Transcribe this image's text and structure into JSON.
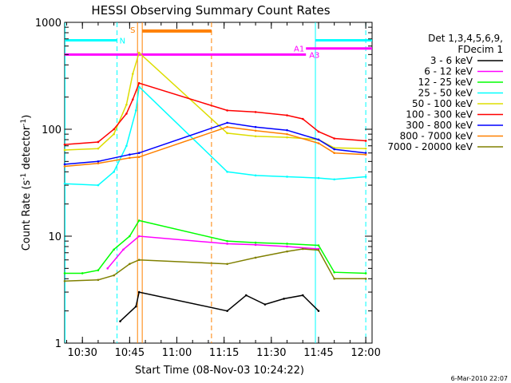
{
  "chart_data": {
    "type": "line",
    "title": "HESSI Observing Summary Count Rates",
    "xlabel": "Start Time (08-Nov-03 10:24:22)",
    "ylabel": "Count Rate (s",
    "ylabel_sup": "-1",
    "ylabel_mid": " detector",
    "ylabel_tail": ")",
    "y_scale": "log",
    "ylim": [
      1,
      1000
    ],
    "xlim": [
      "10:24:22",
      "12:02:00"
    ],
    "x_ticks": [
      "10:30",
      "10:45",
      "11:00",
      "11:15",
      "11:30",
      "11:45",
      "12:00"
    ],
    "y_ticks": [
      "1",
      "10",
      "100",
      "1000"
    ],
    "grid": false,
    "legend_position": "right",
    "legend_title": [
      "Det 1,3,4,5,6,9,",
      "FDecim 1"
    ],
    "series": [
      {
        "name": "3 - 6 keV",
        "color": "#000000",
        "x": [
          "10:42",
          "10:47",
          "10:48",
          "11:16",
          "11:22",
          "11:28",
          "11:34",
          "11:40",
          "11:45"
        ],
        "values": [
          1.6,
          2.2,
          3.0,
          2.0,
          2.8,
          2.3,
          2.6,
          2.8,
          2.0
        ]
      },
      {
        "name": "6 - 12 keV",
        "color": "#ff00ff",
        "x": [
          "10:38",
          "10:43",
          "10:48",
          "11:16",
          "11:25",
          "11:35",
          "11:45"
        ],
        "values": [
          5.0,
          7.5,
          10.0,
          8.5,
          8.3,
          8.0,
          7.6
        ]
      },
      {
        "name": "12 - 25 keV",
        "color": "#00ff00",
        "x": [
          "10:24:22",
          "10:30",
          "10:35",
          "10:40",
          "10:45",
          "10:48",
          "11:16",
          "11:25",
          "11:35",
          "11:45",
          "11:50",
          "12:00"
        ],
        "values": [
          4.5,
          4.5,
          4.8,
          7.5,
          10.0,
          14.0,
          9.0,
          8.7,
          8.5,
          8.2,
          4.6,
          4.5
        ]
      },
      {
        "name": "25 - 50 keV",
        "color": "#00ffff",
        "x": [
          "10:24:22",
          "10:35",
          "10:40",
          "10:44",
          "10:47",
          "10:48",
          "11:16",
          "11:25",
          "11:35",
          "11:45",
          "11:50",
          "12:00"
        ],
        "values": [
          31,
          30,
          40,
          70,
          150,
          250,
          40,
          37,
          36,
          35,
          34,
          36
        ]
      },
      {
        "name": "50 - 100 keV",
        "color": "#dddd00",
        "x": [
          "10:24:22",
          "10:35",
          "10:40",
          "10:44",
          "10:46",
          "10:48",
          "11:16",
          "11:25",
          "11:35",
          "11:45",
          "11:50",
          "12:00"
        ],
        "values": [
          64,
          66,
          90,
          170,
          330,
          520,
          92,
          86,
          84,
          80,
          67,
          66
        ]
      },
      {
        "name": "100 - 300 keV",
        "color": "#ff0000",
        "x": [
          "10:24:22",
          "10:35",
          "10:40",
          "10:44",
          "10:46",
          "10:48",
          "11:16",
          "11:25",
          "11:35",
          "11:40",
          "11:45",
          "11:50",
          "12:00"
        ],
        "values": [
          72,
          76,
          100,
          140,
          190,
          270,
          150,
          145,
          135,
          125,
          95,
          82,
          78
        ]
      },
      {
        "name": "300 - 800 keV",
        "color": "#0000ff",
        "x": [
          "10:24:22",
          "10:35",
          "10:45",
          "10:48",
          "11:16",
          "11:25",
          "11:35",
          "11:45",
          "11:50",
          "12:00"
        ],
        "values": [
          47,
          50,
          58,
          60,
          115,
          105,
          98,
          80,
          65,
          60
        ]
      },
      {
        "name": "800 - 7000 keV",
        "color": "#ff8000",
        "x": [
          "10:24:22",
          "10:35",
          "10:45",
          "10:48",
          "11:16",
          "11:25",
          "11:35",
          "11:45",
          "11:50",
          "12:00"
        ],
        "values": [
          45,
          48,
          54,
          55,
          105,
          97,
          90,
          74,
          60,
          58
        ]
      },
      {
        "name": "7000 - 20000 keV",
        "color": "#808000",
        "x": [
          "10:24:22",
          "10:35",
          "10:40",
          "10:45",
          "10:48",
          "11:16",
          "11:25",
          "11:35",
          "11:40",
          "11:45",
          "11:50",
          "12:00"
        ],
        "values": [
          3.8,
          3.9,
          4.3,
          5.5,
          6.0,
          5.5,
          6.3,
          7.2,
          7.6,
          7.4,
          4.0,
          4.0
        ]
      }
    ],
    "annotations": {
      "flags": [
        {
          "label": "N",
          "color": "#00ffff",
          "level": 680,
          "x_start": "10:24:22",
          "x_end": "10:41"
        },
        {
          "label": "N",
          "color": "#00ffff",
          "level": 680,
          "x_start": "11:44",
          "x_end": "12:02"
        },
        {
          "label": "A1",
          "color": "#ff00ff",
          "level": 500,
          "x_start": "10:24:22",
          "x_end": "11:41"
        },
        {
          "label": "A3",
          "color": "#ff00ff",
          "level": 570,
          "x_start": "11:41",
          "x_end": "12:02"
        },
        {
          "label": "S",
          "color": "#ff8000",
          "level": 830,
          "x_start": "10:49",
          "x_end": "11:11",
          "thick": true
        }
      ],
      "vertical_lines": [
        {
          "x": "10:24:30",
          "color": "#00ffff",
          "style": "solid"
        },
        {
          "x": "10:41",
          "color": "#00ffff",
          "style": "dashed"
        },
        {
          "x": "10:47:30",
          "color": "#ff8000",
          "style": "solid"
        },
        {
          "x": "10:49",
          "color": "#ff8000",
          "style": "solid"
        },
        {
          "x": "11:11",
          "color": "#ff8000",
          "style": "dashed"
        },
        {
          "x": "11:44",
          "color": "#00ffff",
          "style": "solid"
        },
        {
          "x": "12:00",
          "color": "#00ffff",
          "style": "dashed"
        }
      ]
    },
    "footer_date": "6-Mar-2010 22:07"
  }
}
